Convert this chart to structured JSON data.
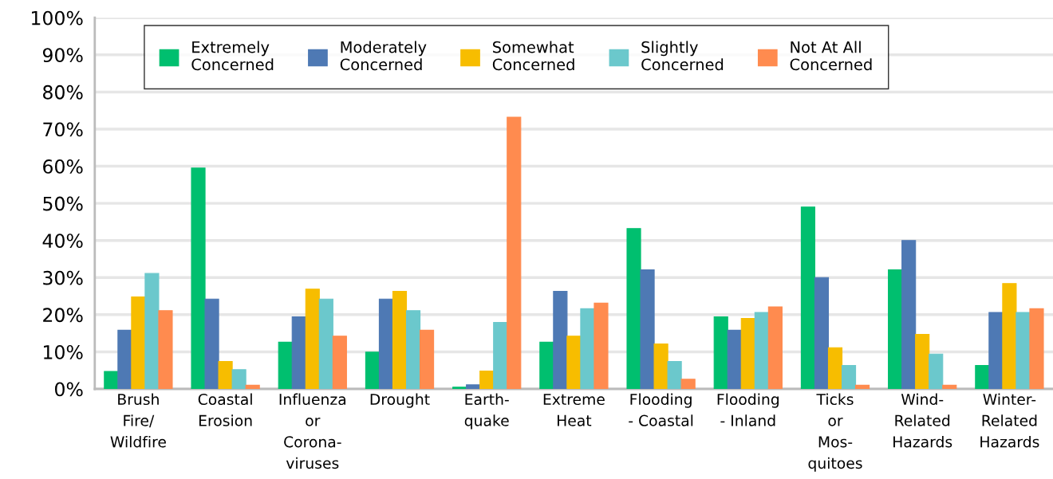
{
  "chart_data": {
    "type": "bar",
    "categories": [
      "Brush\nFire/\nWildfire",
      "Coastal\nErosion",
      "Influenza\nor\nCorona-\nviruses",
      "Drought",
      "Earth-\nquake",
      "Extreme\nHeat",
      "Flooding\n- Coastal",
      "Flooding\n- Inland",
      "Ticks\nor\nMos-\nquitoes",
      "Wind-\nRelated\nHazards",
      "Winter-\nRelated\nHazards"
    ],
    "series": [
      {
        "name": "Extremely\nConcerned",
        "color": "#00bf6f",
        "values": [
          4.7,
          59.5,
          12.6,
          9.9,
          0.5,
          12.6,
          43.2,
          19.4,
          49.0,
          32.1,
          6.3
        ]
      },
      {
        "name": "Moderately\nConcerned",
        "color": "#4e79b4",
        "values": [
          15.8,
          24.2,
          19.4,
          24.2,
          1.1,
          26.3,
          32.1,
          15.8,
          30.0,
          40.0,
          20.6
        ]
      },
      {
        "name": "Somewhat\nConcerned",
        "color": "#f7bd00",
        "values": [
          24.8,
          7.4,
          26.9,
          26.3,
          4.8,
          14.2,
          12.1,
          19.0,
          11.1,
          14.7,
          28.4
        ]
      },
      {
        "name": "Slightly\nConcerned",
        "color": "#6bc8cc",
        "values": [
          31.1,
          5.2,
          24.2,
          21.1,
          17.9,
          21.6,
          7.4,
          20.6,
          6.3,
          9.4,
          20.6
        ]
      },
      {
        "name": "Not At All\nConcerned",
        "color": "#ff8b4f",
        "values": [
          21.1,
          1.0,
          14.2,
          15.8,
          73.2,
          23.1,
          2.6,
          22.1,
          1.0,
          1.0,
          21.6
        ]
      }
    ],
    "ylim": [
      0,
      100
    ],
    "yticks": [
      {
        "value": 0,
        "label": "0%"
      },
      {
        "value": 10,
        "label": "10%"
      },
      {
        "value": 20,
        "label": "20%"
      },
      {
        "value": 30,
        "label": "30%"
      },
      {
        "value": 40,
        "label": "40%"
      },
      {
        "value": 50,
        "label": "50%"
      },
      {
        "value": 60,
        "label": "60%"
      },
      {
        "value": 70,
        "label": "70%"
      },
      {
        "value": 80,
        "label": "80%"
      },
      {
        "value": 90,
        "label": "90%"
      },
      {
        "value": 100,
        "label": "100%"
      }
    ],
    "grid": "y",
    "legend": "top"
  }
}
